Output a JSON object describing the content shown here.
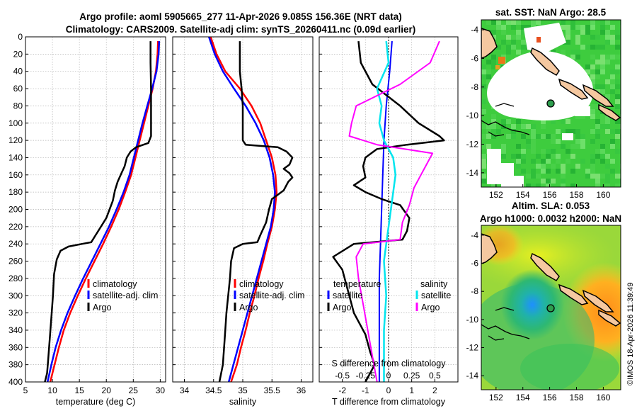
{
  "title_line1": "Argo profile: aoml 5905665_277 11-Apr-2026 9.085S 156.36E (NRT data)",
  "title_line2": "Climatology: CARS2009. Satellite-adj clim: synTS_20260411.nc (0.09d earlier)",
  "credit": "©IMOS 18-Apr-2026 11:39:49",
  "colors": {
    "climatology": "#ff0000",
    "satellite": "#0000ff",
    "argo": "#000000",
    "sal_diff_argo": "#ff00ff",
    "sal_diff_sat": "#00e5ee",
    "map_ocean": "#33cc33",
    "land": "#f5c8a0"
  },
  "chart_data": [
    {
      "id": "temperature",
      "type": "line",
      "xlabel": "temperature (deg C)",
      "ylabel": "",
      "xlim": [
        5,
        31
      ],
      "ylim": [
        0,
        400
      ],
      "y_reversed": true,
      "xticks": [
        5,
        10,
        15,
        20,
        25,
        30
      ],
      "yticks": [
        0,
        20,
        40,
        60,
        80,
        100,
        120,
        140,
        160,
        180,
        200,
        220,
        240,
        260,
        280,
        300,
        320,
        340,
        360,
        380,
        400
      ],
      "grid": true,
      "legend": {
        "position": "bottom-right",
        "entries": [
          "climatology",
          "satellite-adj. clim",
          "Argo"
        ]
      },
      "series": [
        {
          "name": "climatology",
          "color": "#ff0000",
          "width": 2.5,
          "points": [
            [
              29.6,
              5
            ],
            [
              29.5,
              20
            ],
            [
              29.2,
              40
            ],
            [
              28.6,
              60
            ],
            [
              27.8,
              80
            ],
            [
              27,
              100
            ],
            [
              26.2,
              120
            ],
            [
              25.4,
              140
            ],
            [
              24.6,
              160
            ],
            [
              23.5,
              180
            ],
            [
              22.3,
              200
            ],
            [
              20.9,
              220
            ],
            [
              19.4,
              240
            ],
            [
              17.8,
              260
            ],
            [
              16.2,
              280
            ],
            [
              14.7,
              300
            ],
            [
              13.3,
              320
            ],
            [
              12.1,
              340
            ],
            [
              11.2,
              360
            ],
            [
              10.4,
              380
            ],
            [
              9.6,
              400
            ]
          ]
        },
        {
          "name": "satellite-adj. clim",
          "color": "#0000ff",
          "width": 2.5,
          "points": [
            [
              29.8,
              5
            ],
            [
              29.7,
              20
            ],
            [
              29.3,
              40
            ],
            [
              28.5,
              60
            ],
            [
              27.6,
              80
            ],
            [
              26.7,
              100
            ],
            [
              25.9,
              120
            ],
            [
              25.1,
              140
            ],
            [
              24.3,
              160
            ],
            [
              23.2,
              180
            ],
            [
              21.9,
              200
            ],
            [
              20.5,
              220
            ],
            [
              18.9,
              240
            ],
            [
              17.3,
              260
            ],
            [
              15.7,
              280
            ],
            [
              14.2,
              300
            ],
            [
              12.8,
              320
            ],
            [
              11.6,
              340
            ],
            [
              10.6,
              360
            ],
            [
              9.8,
              380
            ],
            [
              9.1,
              400
            ]
          ]
        },
        {
          "name": "Argo",
          "color": "#000000",
          "width": 2.5,
          "points": [
            [
              28.2,
              5
            ],
            [
              28.2,
              30
            ],
            [
              28.3,
              60
            ],
            [
              28.3,
              90
            ],
            [
              28.3,
              115
            ],
            [
              27.8,
              123
            ],
            [
              25.5,
              128
            ],
            [
              24.5,
              133
            ],
            [
              23.8,
              140
            ],
            [
              23.4,
              150
            ],
            [
              22.8,
              158
            ],
            [
              22.1,
              168
            ],
            [
              21.6,
              178
            ],
            [
              21.2,
              190
            ],
            [
              20.6,
              200
            ],
            [
              20,
              210
            ],
            [
              19,
              220
            ],
            [
              18,
              230
            ],
            [
              17.2,
              238
            ],
            [
              15.5,
              240
            ],
            [
              13,
              243
            ],
            [
              11.5,
              248
            ],
            [
              10.8,
              258
            ],
            [
              10.3,
              275
            ],
            [
              10.1,
              300
            ],
            [
              9.8,
              325
            ],
            [
              9.5,
              350
            ],
            [
              9.2,
              375
            ],
            [
              9,
              390
            ],
            [
              8.6,
              400
            ]
          ]
        }
      ]
    },
    {
      "id": "salinity",
      "type": "line",
      "xlabel": "salinity",
      "ylabel": "",
      "xlim": [
        33.8,
        36.2
      ],
      "ylim": [
        0,
        400
      ],
      "y_reversed": true,
      "xticks": [
        34,
        34.5,
        35,
        35.5,
        36
      ],
      "grid": true,
      "legend": {
        "position": "bottom-right",
        "entries": [
          "climatology",
          "satellite-adj. clim",
          "Argo"
        ]
      },
      "series": [
        {
          "name": "climatology",
          "color": "#ff0000",
          "width": 2.5,
          "points": [
            [
              34.45,
              0
            ],
            [
              34.55,
              20
            ],
            [
              34.7,
              40
            ],
            [
              34.95,
              60
            ],
            [
              35.15,
              80
            ],
            [
              35.3,
              100
            ],
            [
              35.4,
              120
            ],
            [
              35.5,
              140
            ],
            [
              35.56,
              160
            ],
            [
              35.58,
              180
            ],
            [
              35.55,
              200
            ],
            [
              35.5,
              220
            ],
            [
              35.42,
              240
            ],
            [
              35.35,
              260
            ],
            [
              35.27,
              280
            ],
            [
              35.2,
              300
            ],
            [
              35.12,
              320
            ],
            [
              35.05,
              340
            ],
            [
              34.97,
              360
            ],
            [
              34.9,
              380
            ],
            [
              34.8,
              400
            ]
          ]
        },
        {
          "name": "satellite-adj. clim",
          "color": "#0000ff",
          "width": 2.5,
          "points": [
            [
              34.42,
              0
            ],
            [
              34.52,
              20
            ],
            [
              34.66,
              40
            ],
            [
              34.85,
              60
            ],
            [
              35.05,
              80
            ],
            [
              35.22,
              100
            ],
            [
              35.36,
              120
            ],
            [
              35.46,
              140
            ],
            [
              35.52,
              160
            ],
            [
              35.55,
              180
            ],
            [
              35.53,
              200
            ],
            [
              35.48,
              220
            ],
            [
              35.4,
              240
            ],
            [
              35.32,
              260
            ],
            [
              35.24,
              280
            ],
            [
              35.16,
              300
            ],
            [
              35.08,
              320
            ],
            [
              35.0,
              340
            ],
            [
              34.92,
              360
            ],
            [
              34.84,
              380
            ],
            [
              34.76,
              400
            ]
          ]
        },
        {
          "name": "Argo",
          "color": "#000000",
          "width": 2.5,
          "points": [
            [
              34.95,
              5
            ],
            [
              34.95,
              40
            ],
            [
              34.98,
              60
            ],
            [
              35.0,
              80
            ],
            [
              35.0,
              100
            ],
            [
              35.0,
              120
            ],
            [
              35.05,
              125
            ],
            [
              35.6,
              128
            ],
            [
              35.75,
              133
            ],
            [
              35.85,
              140
            ],
            [
              35.8,
              148
            ],
            [
              35.7,
              153
            ],
            [
              35.8,
              158
            ],
            [
              35.85,
              163
            ],
            [
              35.78,
              168
            ],
            [
              35.7,
              178
            ],
            [
              35.5,
              188
            ],
            [
              35.45,
              200
            ],
            [
              35.4,
              215
            ],
            [
              35.3,
              230
            ],
            [
              35.25,
              238
            ],
            [
              35.0,
              240
            ],
            [
              34.85,
              245
            ],
            [
              34.8,
              260
            ],
            [
              34.78,
              280
            ],
            [
              34.75,
              300
            ],
            [
              34.72,
              320
            ],
            [
              34.7,
              340
            ],
            [
              34.68,
              360
            ],
            [
              34.66,
              380
            ],
            [
              34.6,
              400
            ]
          ]
        }
      ]
    },
    {
      "id": "difference",
      "type": "line",
      "xlabel": "T difference from climatology",
      "top_xlabel": "S difference from climatology",
      "ylabel": "",
      "xlim": [
        -3,
        3
      ],
      "top_xlim": [
        -0.75,
        0.75
      ],
      "ylim": [
        0,
        400
      ],
      "y_reversed": true,
      "xticks": [
        -2,
        -1,
        0,
        1,
        2
      ],
      "top_xticks": [
        "-0.5",
        "-0.25",
        "0",
        "0.25",
        "0.5"
      ],
      "grid": true,
      "legend": {
        "position": "bottom",
        "entries": [
          "temperature",
          "satellite",
          "Argo",
          "salinity",
          "satellite",
          "Argo"
        ]
      },
      "series": [
        {
          "name": "temperature satellite",
          "color": "#0000ff",
          "width": 2,
          "points": [
            [
              0.15,
              5
            ],
            [
              0.05,
              40
            ],
            [
              -0.1,
              80
            ],
            [
              -0.2,
              120
            ],
            [
              -0.25,
              160
            ],
            [
              -0.3,
              200
            ],
            [
              -0.35,
              240
            ],
            [
              -0.4,
              280
            ],
            [
              -0.4,
              320
            ],
            [
              -0.4,
              360
            ],
            [
              -0.4,
              400
            ]
          ]
        },
        {
          "name": "temperature Argo",
          "color": "#000000",
          "width": 2.5,
          "points": [
            [
              -1.3,
              5
            ],
            [
              -1.2,
              30
            ],
            [
              -0.7,
              55
            ],
            [
              0.5,
              80
            ],
            [
              1.3,
              100
            ],
            [
              2.2,
              115
            ],
            [
              2.4,
              120
            ],
            [
              0.8,
              125
            ],
            [
              -0.5,
              130
            ],
            [
              -1.0,
              140
            ],
            [
              -1.1,
              150
            ],
            [
              -1.0,
              163
            ],
            [
              -1.5,
              172
            ],
            [
              -1.0,
              180
            ],
            [
              -0.3,
              188
            ],
            [
              0.5,
              195
            ],
            [
              0.9,
              210
            ],
            [
              0.8,
              225
            ],
            [
              0.6,
              235
            ],
            [
              -1.5,
              240
            ],
            [
              -2.4,
              255
            ],
            [
              -2.0,
              270
            ],
            [
              -1.7,
              300
            ],
            [
              -1.5,
              320
            ],
            [
              -1.0,
              345
            ],
            [
              -0.8,
              365
            ],
            [
              -0.6,
              380
            ],
            [
              -1.0,
              400
            ]
          ]
        },
        {
          "name": "salinity satellite",
          "color": "#00e5ee",
          "width": 2.5,
          "points": [
            [
              -0.1,
              5
            ],
            [
              0.0,
              30
            ],
            [
              -0.5,
              60
            ],
            [
              -0.3,
              80
            ],
            [
              -0.4,
              100
            ],
            [
              -0.2,
              120
            ],
            [
              0.2,
              140
            ],
            [
              0.3,
              160
            ],
            [
              0.1,
              200
            ],
            [
              -0.1,
              240
            ],
            [
              -0.2,
              260
            ],
            [
              -0.1,
              300
            ],
            [
              -0.2,
              340
            ],
            [
              -0.2,
              380
            ],
            [
              -0.2,
              400
            ]
          ]
        },
        {
          "name": "salinity Argo",
          "color": "#ff00ff",
          "width": 2,
          "points": [
            [
              2.2,
              5
            ],
            [
              1.8,
              30
            ],
            [
              0.5,
              55
            ],
            [
              -1.4,
              80
            ],
            [
              -1.6,
              100
            ],
            [
              -1.7,
              115
            ],
            [
              -0.5,
              125
            ],
            [
              1.9,
              135
            ],
            [
              1.6,
              150
            ],
            [
              1.4,
              160
            ],
            [
              1.1,
              175
            ],
            [
              0.9,
              195
            ],
            [
              0.6,
              215
            ],
            [
              0.5,
              235
            ],
            [
              -1.1,
              240
            ],
            [
              -1.4,
              255
            ],
            [
              -1.3,
              280
            ],
            [
              -1.1,
              310
            ],
            [
              -0.9,
              340
            ],
            [
              -0.7,
              370
            ],
            [
              -0.5,
              400
            ]
          ]
        }
      ]
    },
    {
      "id": "sst_map",
      "type": "heatmap",
      "title": "sat. SST: NaN Argo: 28.5",
      "xlim": [
        150.9,
        161.3
      ],
      "ylim": [
        -15,
        -3.3
      ],
      "xticks": [
        152,
        154,
        156,
        158,
        160
      ],
      "yticks": [
        -4,
        -6,
        -8,
        -10,
        -12,
        -14
      ],
      "argo_position": [
        156.36,
        -9.085
      ]
    },
    {
      "id": "sla_map",
      "type": "heatmap",
      "title_line1": "Altim. SLA: 0.053",
      "title_line2": "Argo h1000: 0.0032 h2000: NaN",
      "xlim": [
        150.9,
        161.3
      ],
      "ylim": [
        -15,
        -3.3
      ],
      "xticks": [
        152,
        154,
        156,
        158,
        160
      ],
      "yticks": [
        -4,
        -6,
        -8,
        -10,
        -12,
        -14
      ],
      "argo_position": [
        156.36,
        -9.085
      ]
    }
  ]
}
